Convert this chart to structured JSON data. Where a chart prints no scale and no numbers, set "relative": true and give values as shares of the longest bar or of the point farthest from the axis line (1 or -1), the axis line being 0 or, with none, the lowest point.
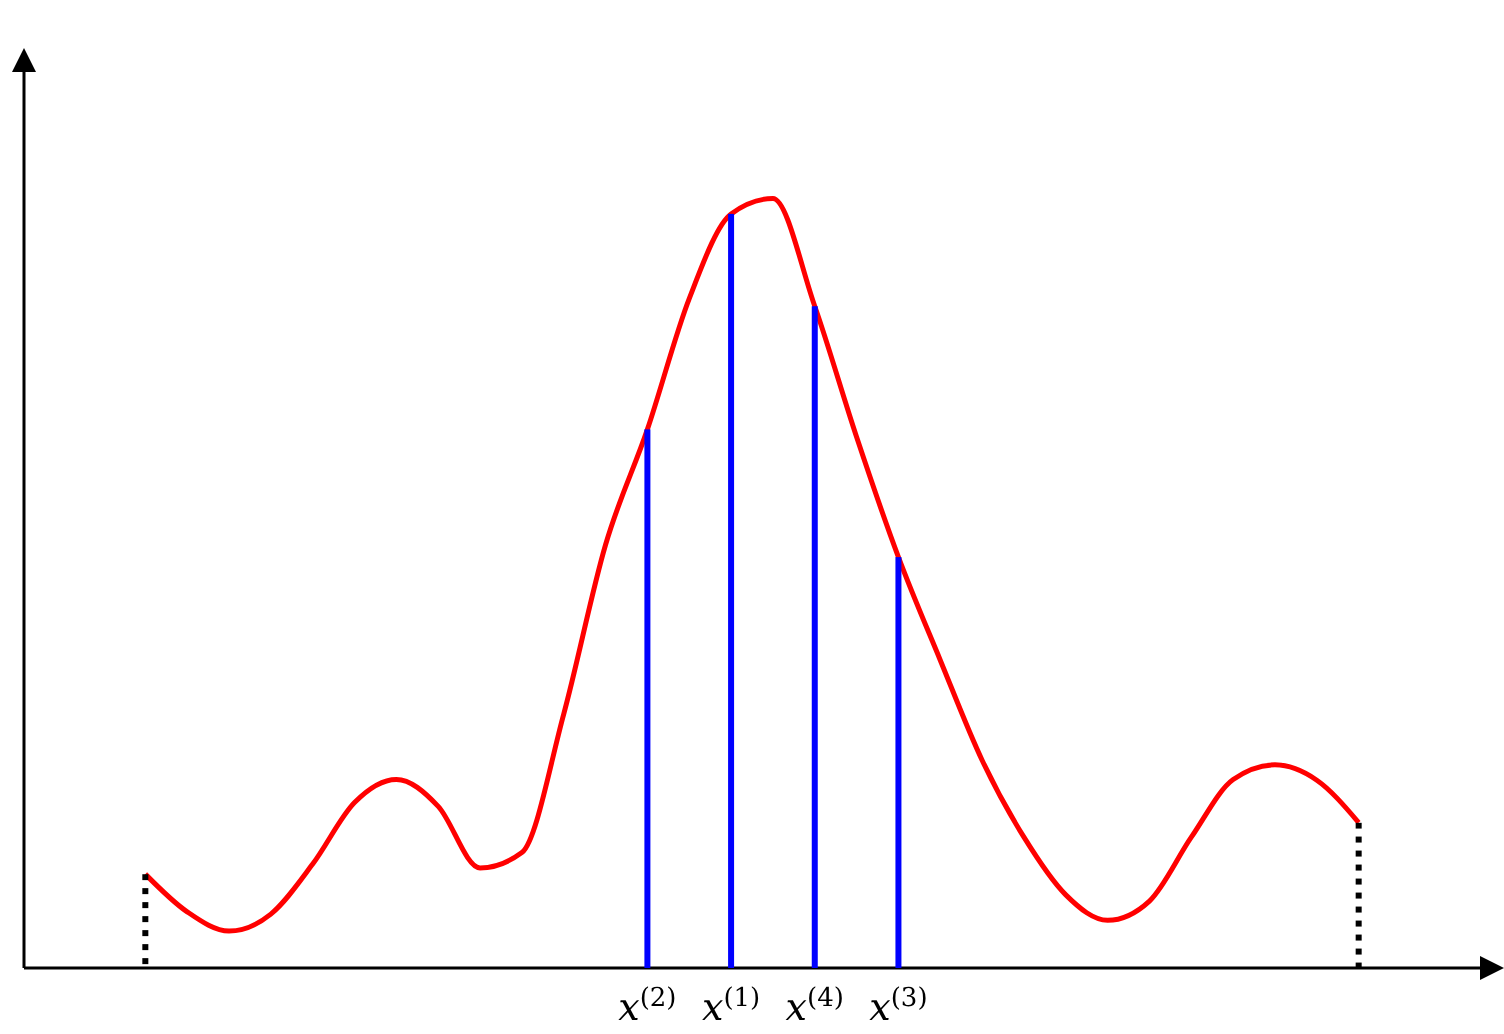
{
  "chart_data": {
    "type": "line",
    "relative": true,
    "categories": [
      null,
      null,
      null,
      null,
      null,
      null,
      null,
      null,
      null,
      null,
      null,
      null,
      "x$^{(2)}$",
      null,
      "x$^{(1)}$",
      null,
      "x$^{(4)}$",
      null,
      "x$^{(3)}$",
      null,
      null,
      null,
      null,
      null,
      null,
      null,
      null,
      null,
      null,
      null
    ],
    "series": [
      {
        "color": "#ff0000",
        "line_style": "solid",
        "values": [
          0.122,
          0.073,
          0.048,
          0.07,
          0.135,
          0.215,
          0.245,
          0.21,
          0.13,
          0.15,
          0.33,
          0.55,
          0.7,
          0.87,
          0.98,
          1,
          0.86,
          0.69,
          0.534,
          0.4,
          0.27,
          0.17,
          0.095,
          0.062,
          0.087,
          0.17,
          0.245,
          0.264,
          0.244,
          0.189
        ]
      },
      {
        "type": "bar",
        "color": "#0000ff",
        "line_style": "solid",
        "values": [
          null,
          null,
          null,
          null,
          null,
          null,
          null,
          null,
          null,
          null,
          null,
          null,
          0.7,
          null,
          0.98,
          null,
          0.86,
          null,
          0.534,
          null,
          null,
          null,
          null,
          null,
          null,
          null,
          null,
          null,
          null,
          null
        ]
      },
      {
        "type": "bar",
        "color": "#000000",
        "line_style": "dotted",
        "values": [
          0.122,
          null,
          null,
          null,
          null,
          null,
          null,
          null,
          null,
          null,
          null,
          null,
          null,
          null,
          null,
          null,
          null,
          null,
          null,
          null,
          null,
          null,
          null,
          null,
          null,
          null,
          null,
          null,
          null,
          0.189
        ]
      }
    ]
  }
}
